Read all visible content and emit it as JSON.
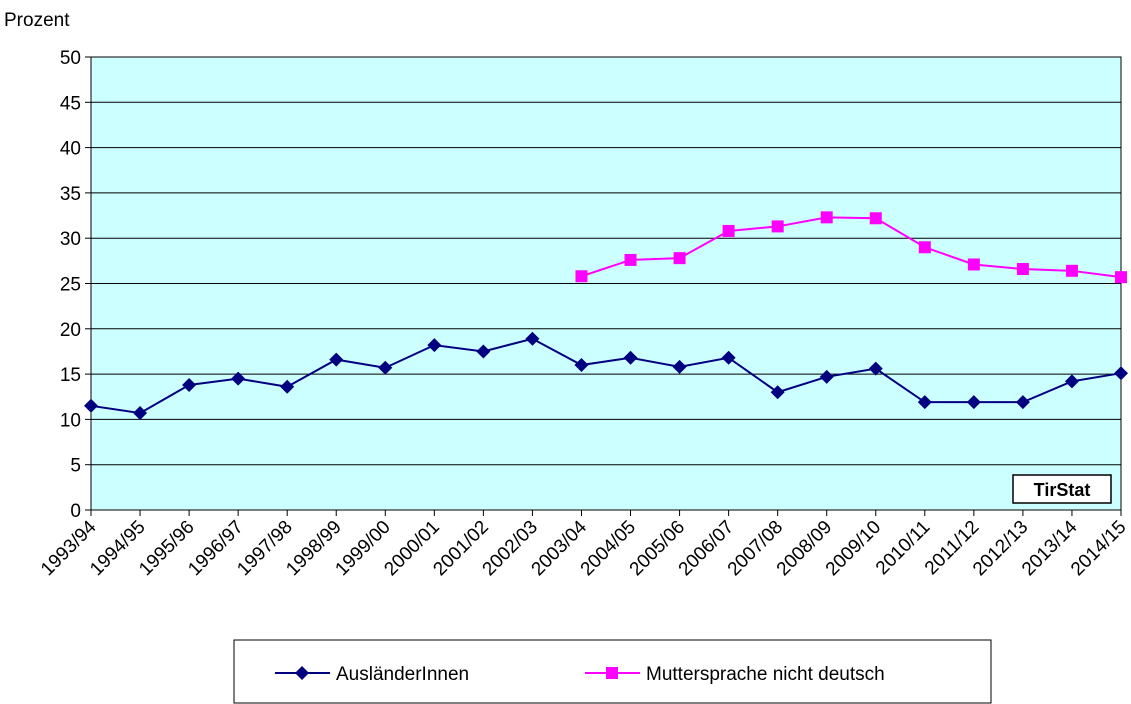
{
  "chart_data": {
    "type": "line",
    "y_label": "Prozent",
    "annotation": "TirStat",
    "categories": [
      "1993/94",
      "1994/95",
      "1995/96",
      "1996/97",
      "1997/98",
      "1998/99",
      "1999/00",
      "2000/01",
      "2001/02",
      "2002/03",
      "2003/04",
      "2004/05",
      "2005/06",
      "2006/07",
      "2007/08",
      "2008/09",
      "2009/10",
      "2010/11",
      "2011/12",
      "2012/13",
      "2013/14",
      "2014/15"
    ],
    "series": [
      {
        "name": "AusländerInnen",
        "color": "#000080",
        "marker": "diamond",
        "values": [
          11.5,
          10.7,
          13.8,
          14.5,
          13.6,
          16.6,
          15.7,
          18.2,
          17.5,
          18.9,
          16.0,
          16.8,
          15.8,
          16.8,
          13.0,
          14.7,
          15.6,
          11.9,
          11.9,
          11.9,
          14.2,
          15.1
        ]
      },
      {
        "name": "Muttersprache nicht deutsch",
        "color": "#ff00ff",
        "marker": "square",
        "values": [
          null,
          null,
          null,
          null,
          null,
          null,
          null,
          null,
          null,
          null,
          25.8,
          27.6,
          27.8,
          30.8,
          31.3,
          32.3,
          32.2,
          29.0,
          27.1,
          26.6,
          26.4,
          25.7
        ]
      }
    ],
    "ylim": [
      0,
      50
    ],
    "yticks": [
      0,
      5,
      10,
      15,
      20,
      25,
      30,
      35,
      40,
      45,
      50
    ],
    "grid": true,
    "legend": "bottom"
  }
}
